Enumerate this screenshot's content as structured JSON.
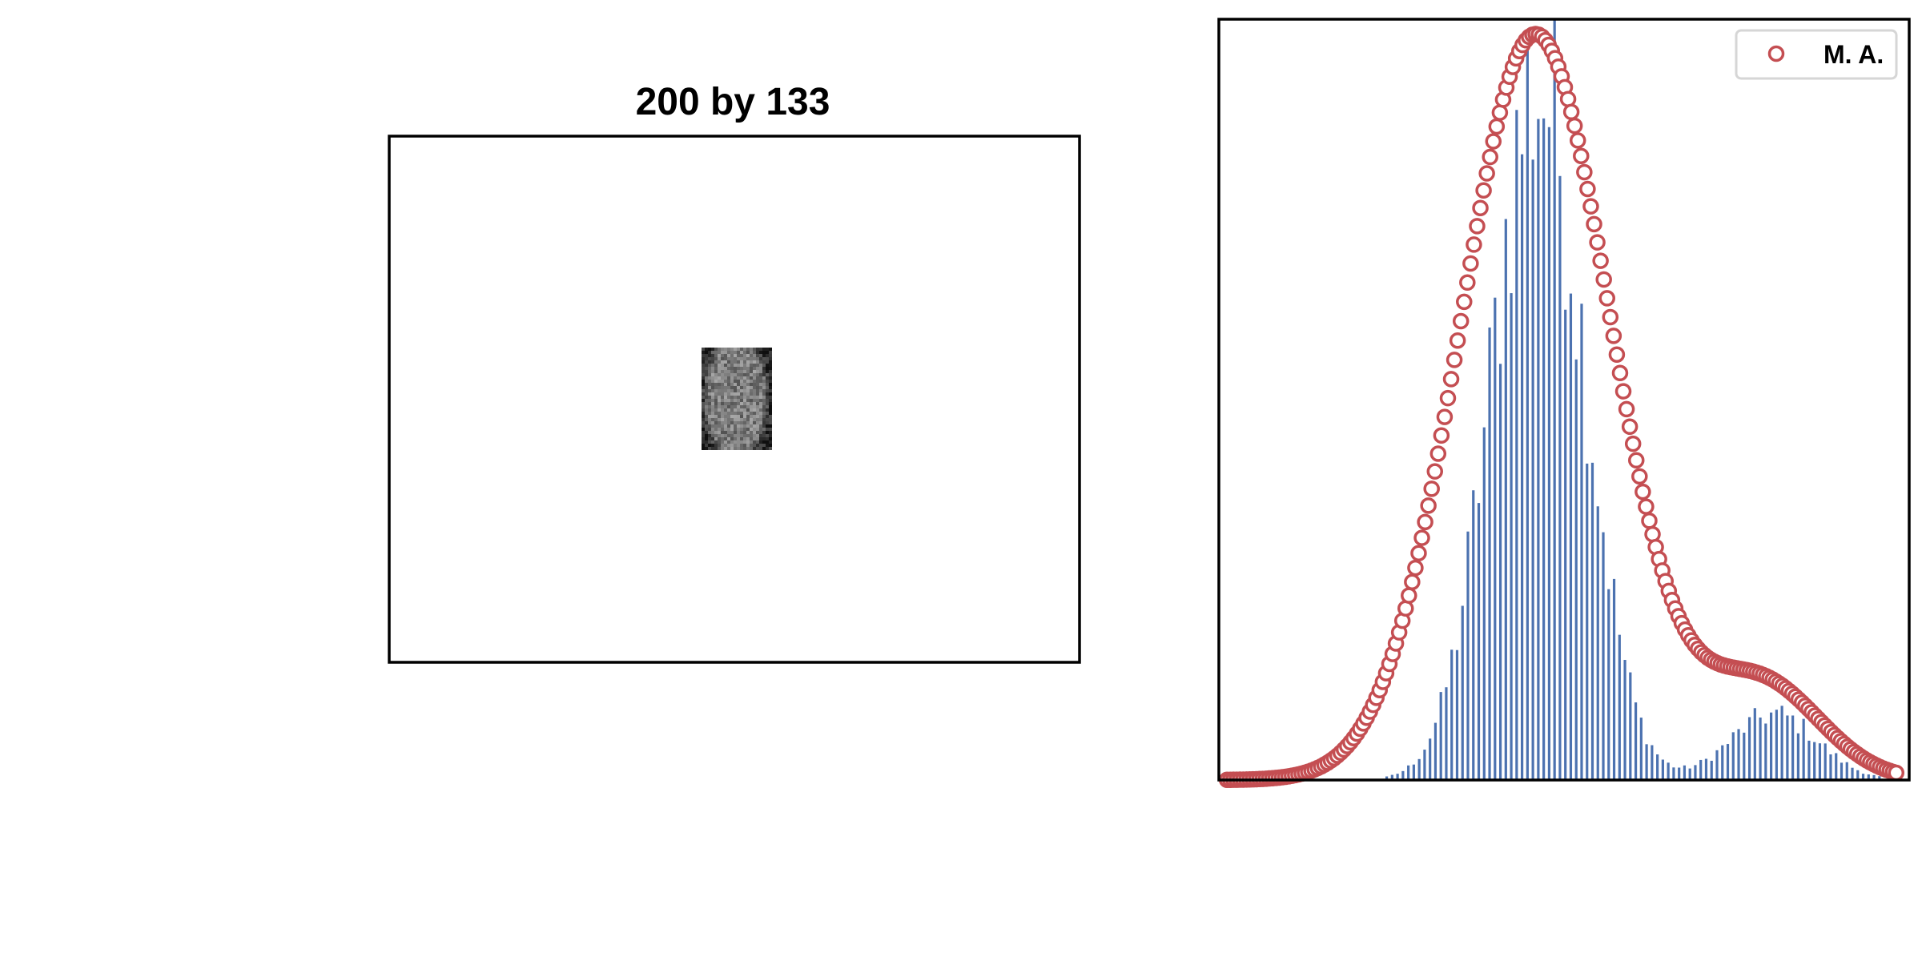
{
  "colors": {
    "bars": "#4c72b0",
    "marker": "#c44e52",
    "frame": "#000000",
    "legend_border": "#d6d6d6"
  },
  "chart_data": [
    {
      "type": "image",
      "title": "200 by 133",
      "image_width": 200,
      "image_height": 133,
      "image_description": "small grayscale noise patch, centered"
    },
    {
      "type": "bar",
      "title": "",
      "xlabel": "",
      "ylabel": "",
      "xlim": [
        0,
        255
      ],
      "ylim": [
        0,
        1.02
      ],
      "grid": false,
      "ticks_visible": false,
      "legend": {
        "entries": [
          "M. A."
        ],
        "location": "top-right"
      },
      "histogram": {
        "series_name": "",
        "bin_start": 10,
        "bin_end": 250,
        "bin_step": 2,
        "components": [
          {
            "mu": 118,
            "sigma": 17,
            "amp": 0.95
          },
          {
            "mu": 205,
            "sigma": 16,
            "amp": 0.09
          }
        ]
      },
      "series": [
        {
          "name": "M. A.",
          "type": "scatter",
          "marker": "open-circle",
          "x_start": 3,
          "x_end": 251,
          "x_step": 1.2,
          "components": [
            {
              "mu": 117,
              "sigma": 28,
              "amp": 1.0
            },
            {
              "mu": 200,
              "sigma": 22,
              "amp": 0.13
            }
          ]
        }
      ]
    }
  ]
}
